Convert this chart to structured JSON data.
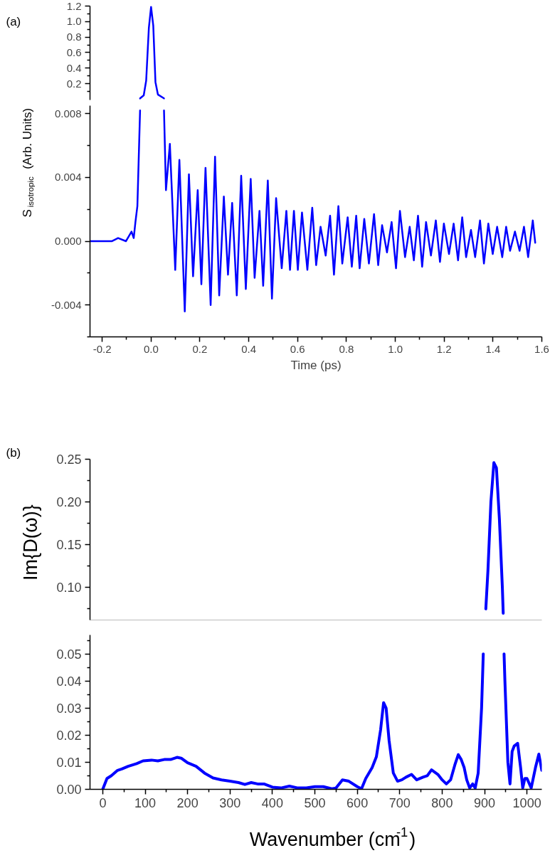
{
  "chart_data": [
    {
      "type": "line",
      "annotations": [
        "(a)"
      ],
      "xlim": [
        -0.25,
        1.6
      ],
      "ylim": [
        -0.01,
        1.2
      ],
      "tick_labels": "y",
      "yticks": [
        {
          "value": 0.2,
          "label": "0.2"
        },
        {
          "value": 0.4,
          "label": "0.4"
        },
        {
          "value": 0.6,
          "label": "0.6"
        },
        {
          "value": 0.8,
          "label": "0.8"
        },
        {
          "value": 1.0,
          "label": "1.0"
        },
        {
          "value": 1.2,
          "label": "1.2"
        }
      ],
      "series": [
        {
          "color": "#0000ff",
          "x": [
            -0.045,
            -0.03,
            -0.02,
            -0.009,
            0.0,
            0.009,
            0.018,
            0.028,
            0.053
          ],
          "values": [
            0.01,
            0.05,
            0.24,
            0.92,
            1.19,
            0.95,
            0.22,
            0.06,
            0.01
          ]
        }
      ]
    },
    {
      "type": "line",
      "xlabel": "Time (ps)",
      "ylabel": "S$_{isotropic}$ (Arb. Units)",
      "xlim": [
        -0.25,
        1.6
      ],
      "ylim": [
        -0.006,
        0.0085
      ],
      "xticks": [
        {
          "value": -0.2,
          "label": "-0.2"
        },
        {
          "value": 0.0,
          "label": "0.0"
        },
        {
          "value": 0.2,
          "label": "0.2"
        },
        {
          "value": 0.4,
          "label": "0.4"
        },
        {
          "value": 0.6,
          "label": "0.6"
        },
        {
          "value": 0.8,
          "label": "0.8"
        },
        {
          "value": 1.0,
          "label": "1.0"
        },
        {
          "value": 1.2,
          "label": "1.2"
        },
        {
          "value": 1.4,
          "label": "1.4"
        },
        {
          "value": 1.6,
          "label": "1.6"
        }
      ],
      "yticks": [
        {
          "value": -0.004,
          "label": "-0.004"
        },
        {
          "value": 0.0,
          "label": "0.000"
        },
        {
          "value": 0.004,
          "label": "0.004"
        },
        {
          "value": 0.008,
          "label": "0.008"
        }
      ],
      "series": [
        {
          "color": "#0000ff",
          "x": [
            -0.25,
            -0.2,
            -0.161,
            -0.135,
            -0.103,
            -0.08,
            -0.071,
            -0.064,
            -0.056,
            -0.045,
            0.0,
            0.053,
            0.061,
            0.077,
            0.099,
            0.116,
            0.138,
            0.155,
            0.172,
            0.191,
            0.206,
            0.223,
            0.244,
            0.262,
            0.279,
            0.298,
            0.315,
            0.332,
            0.351,
            0.369,
            0.388,
            0.408,
            0.424,
            0.444,
            0.459,
            0.478,
            0.495,
            0.512,
            0.535,
            0.554,
            0.569,
            0.585,
            0.601,
            0.618,
            0.64,
            0.66,
            0.676,
            0.694,
            0.715,
            0.733,
            0.749,
            0.767,
            0.783,
            0.805,
            0.822,
            0.84,
            0.854,
            0.873,
            0.892,
            0.913,
            0.93,
            0.946,
            0.966,
            0.985,
            1.003,
            1.019,
            1.04,
            1.059,
            1.076,
            1.093,
            1.11,
            1.126,
            1.146,
            1.166,
            1.183,
            1.199,
            1.22,
            1.239,
            1.257,
            1.274,
            1.29,
            1.31,
            1.327,
            1.347,
            1.363,
            1.381,
            1.399,
            1.417,
            1.438,
            1.454,
            1.47,
            1.49,
            1.509,
            1.527,
            1.544,
            1.563,
            1.573
          ],
          "values": [
            0.0,
            0.0,
            0.0,
            0.0002,
            0.0,
            0.0006,
            0.0002,
            0.0012,
            0.0022,
            0.0082,
            null,
            0.0082,
            0.0032,
            0.0061,
            -0.0018,
            0.0051,
            -0.0044,
            0.0042,
            -0.0022,
            0.0032,
            -0.0027,
            0.0046,
            -0.004,
            0.0053,
            -0.0034,
            0.0028,
            -0.0021,
            0.0024,
            -0.0034,
            0.0041,
            -0.003,
            0.0039,
            -0.0023,
            0.0019,
            -0.0028,
            0.0038,
            -0.0036,
            0.0027,
            -0.0017,
            0.0019,
            -0.0018,
            0.0019,
            -0.0018,
            0.0018,
            -0.0018,
            0.0021,
            -0.0015,
            0.0009,
            -0.0009,
            0.0016,
            -0.0021,
            0.0022,
            -0.0014,
            0.0015,
            -0.0016,
            0.0016,
            -0.0017,
            0.0014,
            -0.0014,
            0.0017,
            -0.0015,
            0.001,
            -0.0007,
            0.0012,
            -0.0017,
            0.0019,
            -0.001,
            0.0009,
            -0.0012,
            0.0016,
            -0.0016,
            0.0012,
            -0.0009,
            0.0013,
            -0.0013,
            0.0011,
            -0.0008,
            0.0011,
            -0.0012,
            0.0015,
            -0.001,
            0.0007,
            -0.001,
            0.0013,
            -0.0014,
            0.0011,
            -0.0008,
            0.0009,
            -0.001,
            0.0009,
            -0.0006,
            0.0006,
            -0.0006,
            0.0009,
            -0.001,
            0.0013,
            -0.0001
          ]
        }
      ]
    },
    {
      "type": "line",
      "annotations": [
        "(b)"
      ],
      "ylabel": "Im{D(ω)}",
      "xlim": [
        -30,
        1035
      ],
      "ylim": [
        0.062,
        0.25
      ],
      "tick_labels": "y",
      "yticks": [
        {
          "value": 0.1,
          "label": "0.10"
        },
        {
          "value": 0.15,
          "label": "0.15"
        },
        {
          "value": 0.2,
          "label": "0.20"
        },
        {
          "value": 0.25,
          "label": "0.25"
        }
      ],
      "series": [
        {
          "color": "#0000ff",
          "x": [
            903,
            908,
            915,
            922,
            928,
            935,
            942,
            944
          ],
          "values": [
            0.075,
            0.12,
            0.2,
            0.246,
            0.24,
            0.18,
            0.1,
            0.07
          ]
        }
      ]
    },
    {
      "type": "line",
      "xlabel": "Wavenumber (cm$^{-1}$)",
      "xlim": [
        -30,
        1035
      ],
      "ylim": [
        0.0,
        0.057
      ],
      "xticks": [
        {
          "value": 0,
          "label": "0"
        },
        {
          "value": 100,
          "label": "100"
        },
        {
          "value": 200,
          "label": "200"
        },
        {
          "value": 300,
          "label": "300"
        },
        {
          "value": 400,
          "label": "400"
        },
        {
          "value": 500,
          "label": "500"
        },
        {
          "value": 600,
          "label": "600"
        },
        {
          "value": 700,
          "label": "700"
        },
        {
          "value": 800,
          "label": "800"
        },
        {
          "value": 900,
          "label": "900"
        },
        {
          "value": 1000,
          "label": "1000"
        }
      ],
      "yticks": [
        {
          "value": 0.0,
          "label": "0.00"
        },
        {
          "value": 0.01,
          "label": "0.01"
        },
        {
          "value": 0.02,
          "label": "0.02"
        },
        {
          "value": 0.03,
          "label": "0.03"
        },
        {
          "value": 0.04,
          "label": "0.04"
        },
        {
          "value": 0.05,
          "label": "0.05"
        }
      ],
      "series": [
        {
          "color": "#0000ff",
          "x": [
            0,
            10,
            20,
            35,
            45,
            60,
            80,
            95,
            115,
            130,
            145,
            160,
            175,
            185,
            200,
            220,
            240,
            260,
            280,
            300,
            320,
            335,
            350,
            365,
            380,
            400,
            420,
            440,
            460,
            480,
            500,
            520,
            540,
            550,
            565,
            580,
            600,
            610,
            620,
            635,
            645,
            655,
            662,
            668,
            675,
            685,
            695,
            705,
            715,
            728,
            740,
            755,
            765,
            775,
            790,
            800,
            810,
            820,
            830,
            838,
            845,
            852,
            858,
            865,
            872,
            878,
            885,
            893,
            897,
            920,
            946,
            948,
            955,
            960,
            965,
            970,
            978,
            985,
            990,
            995,
            1000,
            1010,
            1020,
            1028,
            1035
          ],
          "values": [
            0.0,
            0.004,
            0.005,
            0.007,
            0.0075,
            0.0085,
            0.0095,
            0.0105,
            0.0108,
            0.0105,
            0.011,
            0.011,
            0.0118,
            0.0115,
            0.0098,
            0.0085,
            0.006,
            0.0042,
            0.0035,
            0.003,
            0.0025,
            0.0018,
            0.0025,
            0.002,
            0.002,
            0.0008,
            0.0005,
            0.0012,
            0.0005,
            0.0005,
            0.001,
            0.001,
            0.0002,
            0.0005,
            0.0035,
            0.003,
            0.001,
            0.0002,
            0.004,
            0.008,
            0.012,
            0.022,
            0.032,
            0.03,
            0.018,
            0.006,
            0.003,
            0.0035,
            0.0045,
            0.0055,
            0.0035,
            0.0045,
            0.005,
            0.0072,
            0.0055,
            0.0035,
            0.002,
            0.0035,
            0.009,
            0.0128,
            0.011,
            0.008,
            0.0035,
            0.0005,
            0.002,
            0.0005,
            0.006,
            0.03,
            0.05,
            null,
            0.05,
            0.04,
            0.01,
            0.002,
            0.014,
            0.016,
            0.017,
            0.008,
            0.0005,
            0.004,
            0.004,
            0.0005,
            0.008,
            0.013,
            0.007
          ]
        }
      ]
    }
  ]
}
